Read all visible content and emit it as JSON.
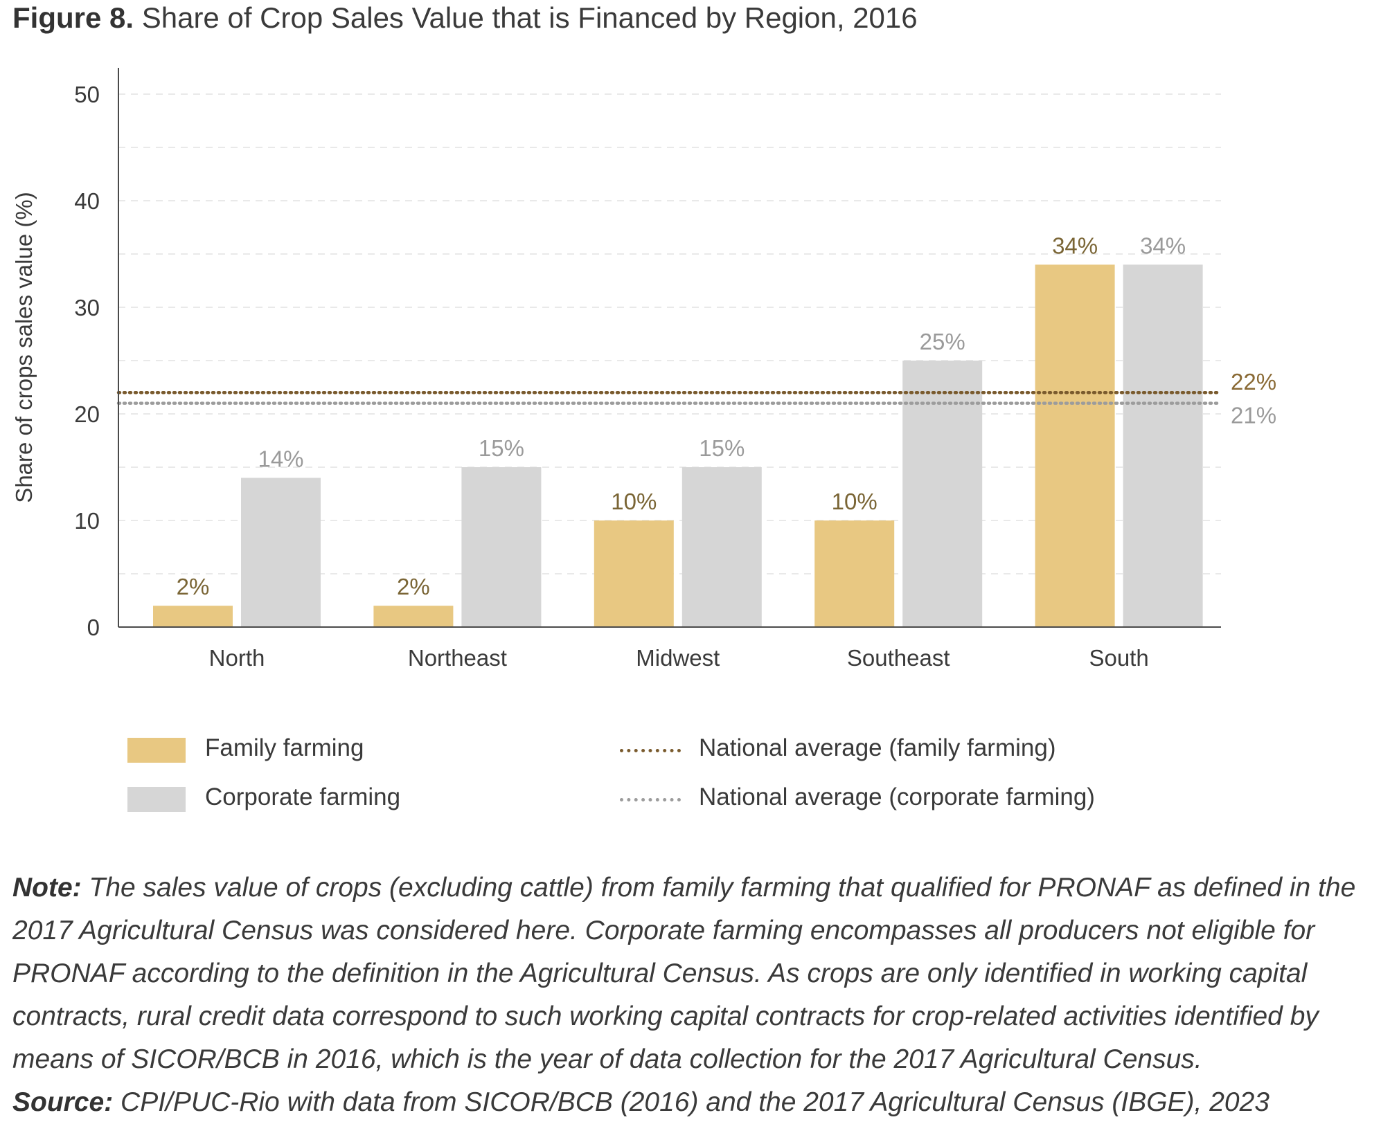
{
  "title": {
    "label": "Figure 8.",
    "text": "Share of Crop Sales Value that is Financed by Region, 2016"
  },
  "chart_data": {
    "type": "bar",
    "ylabel": "Share of crops sales value (%)",
    "ylim": [
      0,
      52
    ],
    "yticks": [
      0,
      10,
      20,
      30,
      40,
      50
    ],
    "grid": true,
    "categories": [
      "North",
      "Northeast",
      "Midwest",
      "Southeast",
      "South"
    ],
    "series": [
      {
        "name": "Family farming",
        "values": [
          2,
          2,
          10,
          10,
          34
        ],
        "labels": [
          "2%",
          "2%",
          "10%",
          "10%",
          "34%"
        ],
        "color": "#E8C882",
        "label_color": "#7A6535"
      },
      {
        "name": "Corporate farming",
        "values": [
          14,
          15,
          15,
          25,
          34
        ],
        "labels": [
          "14%",
          "15%",
          "15%",
          "25%",
          "34%"
        ],
        "color": "#D6D6D6",
        "label_color": "#9A9A9A"
      }
    ],
    "reference_lines": [
      {
        "name": "National average (family farming)",
        "value": 22,
        "label": "22%",
        "color": "#7A5B2E",
        "label_color": "#8A6A35"
      },
      {
        "name": "National average (corporate farming)",
        "value": 21,
        "label": "21%",
        "color": "#9C9C9C",
        "label_color": "#9A9A9A"
      }
    ],
    "legend_position": "bottom"
  },
  "notes": {
    "note_label": "Note:",
    "note_text": "The sales value of crops (excluding cattle) from family farming that qualified for PRONAF as defined in the 2017 Agricultural Census was considered here. Corporate farming encompasses all producers not eligible for PRONAF according to the definition in the Agricultural Census. As crops are only identified in working capital contracts, rural credit data correspond to such working capital contracts for crop-related activities identified by means of SICOR/BCB in 2016, which is the year of data collection for the 2017 Agricultural Census.",
    "source_label": "Source:",
    "source_text": "CPI/PUC-Rio with data from SICOR/BCB (2016) and the 2017 Agricultural Census (IBGE), 2023"
  }
}
